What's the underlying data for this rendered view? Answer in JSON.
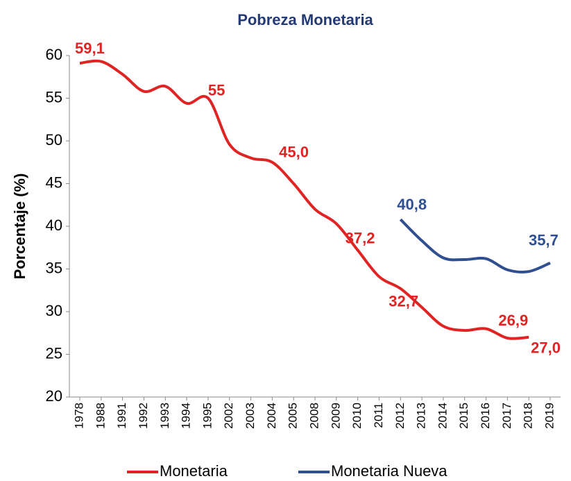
{
  "chart_data": {
    "type": "line",
    "title": "Pobreza Monetaria",
    "y_label": "Porcentaje (%)",
    "categories": [
      "1978",
      "1988",
      "1991",
      "1992",
      "1993",
      "1994",
      "1995",
      "2002",
      "2003",
      "2004",
      "2005",
      "2008",
      "2009",
      "2010",
      "2011",
      "2012",
      "2013",
      "2014",
      "2015",
      "2016",
      "2017",
      "2018",
      "2019"
    ],
    "series": [
      {
        "name": "Monetaria",
        "color": "#e02424",
        "values": [
          59.1,
          59.3,
          57.8,
          55.8,
          56.4,
          54.4,
          55,
          49.6,
          48.0,
          47.5,
          45.0,
          42.0,
          40.3,
          37.2,
          34.1,
          32.7,
          30.5,
          28.3,
          27.8,
          28.0,
          26.9,
          27.0,
          null
        ],
        "value_labels": [
          "59,1",
          null,
          null,
          null,
          null,
          null,
          "55",
          null,
          null,
          null,
          "45,0",
          null,
          null,
          "37,2",
          null,
          "32,7",
          null,
          null,
          null,
          null,
          "26,9",
          "27,0",
          null
        ]
      },
      {
        "name": "Monetaria Nueva",
        "color": "#2f4f91",
        "values": [
          null,
          null,
          null,
          null,
          null,
          null,
          null,
          null,
          null,
          null,
          null,
          null,
          null,
          null,
          null,
          40.8,
          38.3,
          36.3,
          36.1,
          36.2,
          34.9,
          34.7,
          35.7
        ],
        "value_labels": [
          null,
          null,
          null,
          null,
          null,
          null,
          null,
          null,
          null,
          null,
          null,
          null,
          null,
          null,
          null,
          "40,8",
          null,
          null,
          null,
          null,
          null,
          null,
          "35,7"
        ]
      }
    ],
    "ylim": [
      20,
      60
    ],
    "yticks": [
      20,
      25,
      30,
      35,
      40,
      45,
      50,
      55,
      60
    ],
    "grid": false,
    "legend": "bottom"
  }
}
